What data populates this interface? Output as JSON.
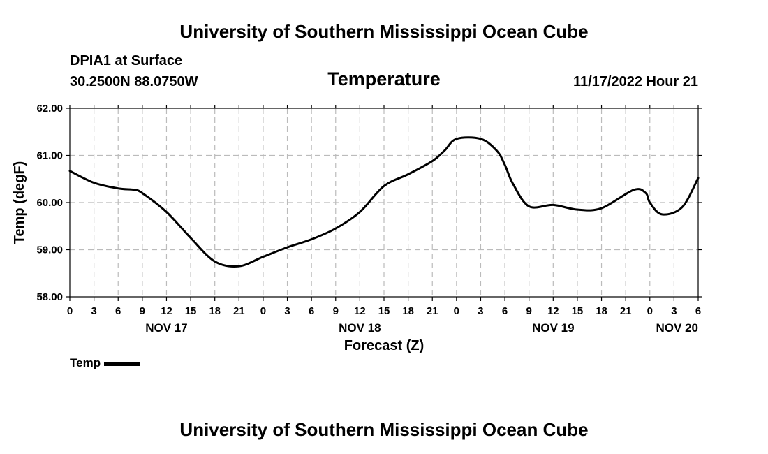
{
  "header": {
    "title_top": "University of Southern Mississippi Ocean Cube",
    "title_bottom": "University of Southern Mississippi Ocean Cube",
    "station": "DPIA1 at Surface",
    "coords": "30.2500N  88.0750W",
    "datetime": "11/17/2022 Hour 21"
  },
  "legend": {
    "label": "Temp"
  },
  "chart_data": {
    "type": "line",
    "title": "Temperature",
    "xlabel": "Forecast (Z)",
    "ylabel": "Temp (degF)",
    "ylim": [
      58.0,
      62.0
    ],
    "y_ticks": [
      58.0,
      59.0,
      60.0,
      61.0,
      62.0
    ],
    "y_tick_labels": [
      "58.00",
      "59.00",
      "60.00",
      "61.00",
      "62.00"
    ],
    "xlim": [
      0,
      78
    ],
    "x_ticks": [
      0,
      3,
      6,
      9,
      12,
      15,
      18,
      21,
      24,
      27,
      30,
      33,
      36,
      39,
      42,
      45,
      48,
      51,
      54,
      57,
      60,
      63,
      66,
      69,
      72,
      75,
      78
    ],
    "x_tick_labels": [
      "0",
      "3",
      "6",
      "9",
      "12",
      "15",
      "18",
      "21",
      "0",
      "3",
      "6",
      "9",
      "12",
      "15",
      "18",
      "21",
      "0",
      "3",
      "6",
      "9",
      "12",
      "15",
      "18",
      "21",
      "0",
      "3",
      "6"
    ],
    "day_labels": [
      {
        "hour": 12,
        "label": "NOV 17"
      },
      {
        "hour": 36,
        "label": "NOV 18"
      },
      {
        "hour": 60,
        "label": "NOV 19"
      },
      {
        "hour": 78,
        "label": "NOV 20"
      }
    ],
    "grid": true,
    "series": [
      {
        "name": "Temp",
        "x": [
          0,
          3,
          6,
          8,
          9,
          12,
          15,
          18,
          21,
          24,
          27,
          30,
          33,
          36,
          39,
          42,
          45,
          46.5,
          48,
          51,
          53,
          54,
          55,
          57,
          60,
          63,
          66,
          70,
          71.5,
          72,
          73.5,
          76,
          78
        ],
        "y": [
          60.67,
          60.42,
          60.3,
          60.27,
          60.2,
          59.8,
          59.25,
          58.75,
          58.65,
          58.85,
          59.05,
          59.22,
          59.45,
          59.8,
          60.35,
          60.6,
          60.88,
          61.1,
          61.35,
          61.35,
          61.1,
          60.8,
          60.4,
          59.92,
          59.95,
          59.85,
          59.88,
          60.27,
          60.2,
          60.0,
          59.75,
          59.9,
          60.52
        ]
      }
    ]
  }
}
